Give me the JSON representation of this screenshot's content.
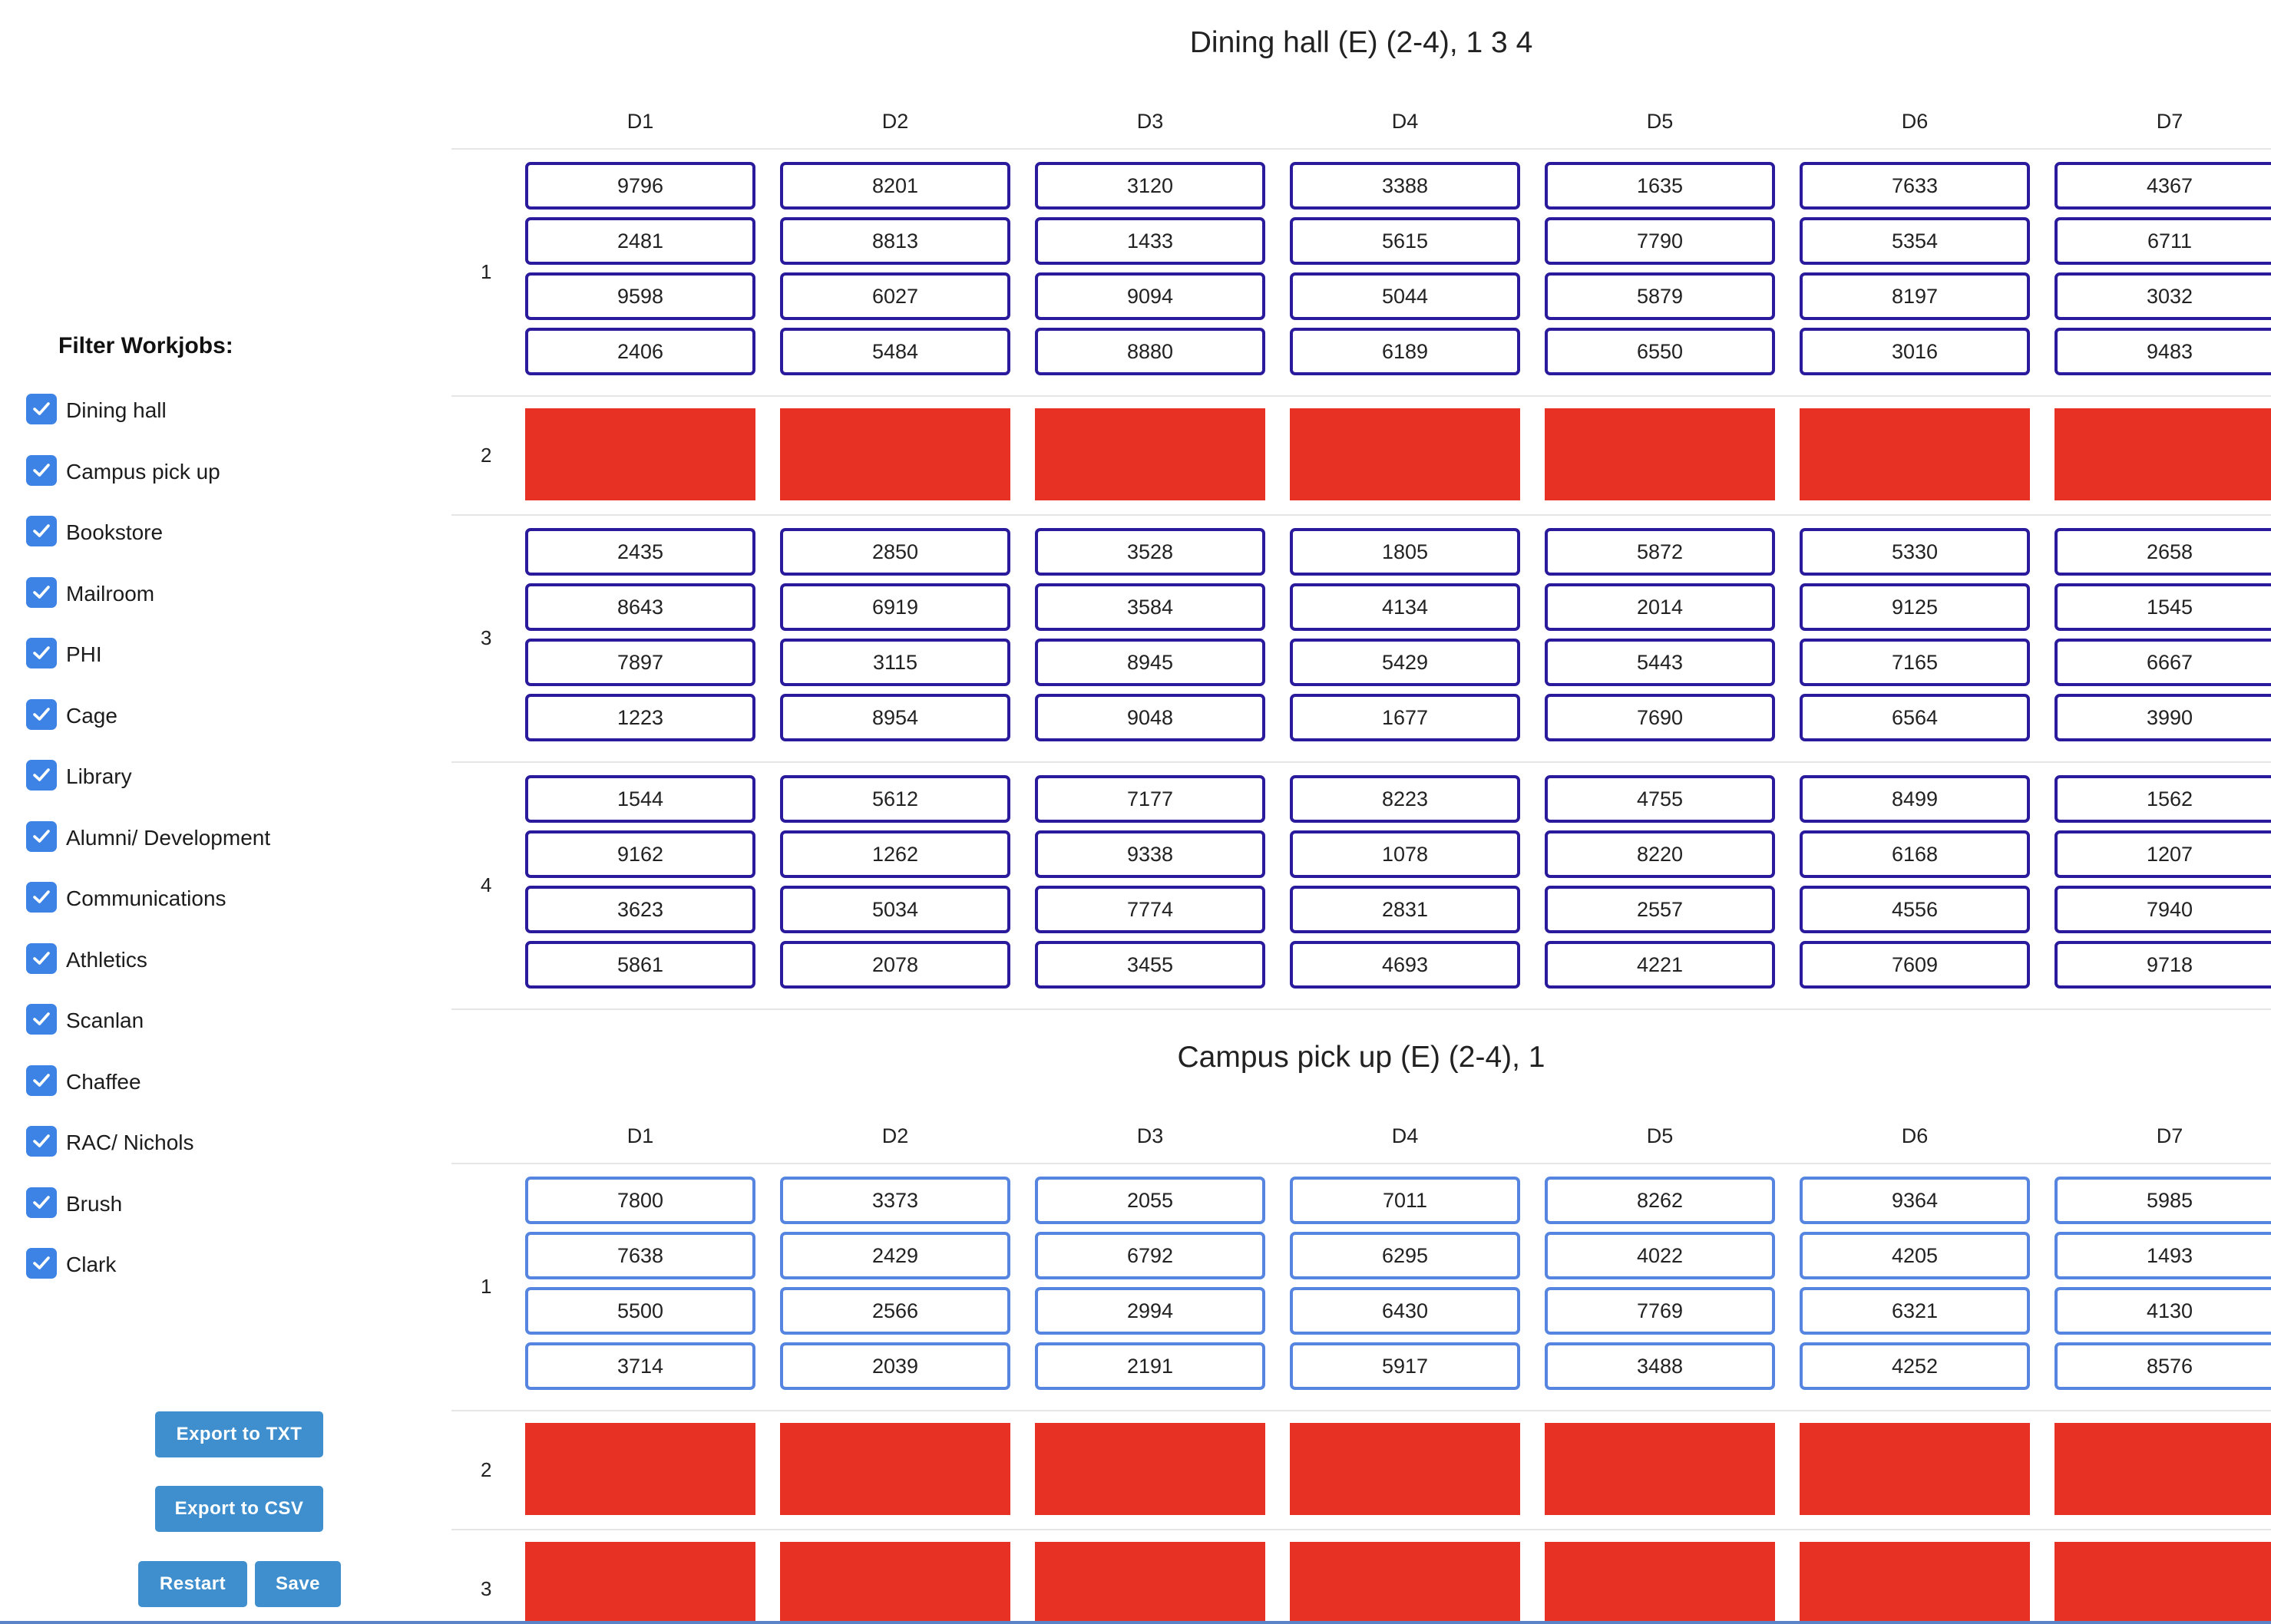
{
  "sidebar": {
    "filter_title": "Filter Workjobs:",
    "checkbox_color": "#3d83e6",
    "filters": [
      {
        "label": "Dining hall",
        "checked": true
      },
      {
        "label": "Campus pick up",
        "checked": true
      },
      {
        "label": "Bookstore",
        "checked": true
      },
      {
        "label": "Mailroom",
        "checked": true
      },
      {
        "label": "PHI",
        "checked": true
      },
      {
        "label": "Cage",
        "checked": true
      },
      {
        "label": "Library",
        "checked": true
      },
      {
        "label": "Alumni/ Development",
        "checked": true
      },
      {
        "label": "Communications",
        "checked": true
      },
      {
        "label": "Athletics",
        "checked": true
      },
      {
        "label": "Scanlan",
        "checked": true
      },
      {
        "label": "Chaffee",
        "checked": true
      },
      {
        "label": "RAC/ Nichols",
        "checked": true
      },
      {
        "label": "Brush",
        "checked": true
      },
      {
        "label": "Clark",
        "checked": true
      }
    ],
    "buttons": {
      "export_txt": "Export to TXT",
      "export_csv": "Export to CSV",
      "restart": "Restart",
      "save": "Save"
    }
  },
  "colors": {
    "blocked": "#e73125",
    "cell_border_dark": "#2a1a9c",
    "cell_border_light": "#5585e1",
    "button": "#3f8fce"
  },
  "sections": [
    {
      "title": "Dining hall (E) (2-4), 1 3 4",
      "border_style": "dark",
      "days": [
        "D1",
        "D2",
        "D3",
        "D4",
        "D5",
        "D6",
        "D7"
      ],
      "rows": [
        {
          "label": "1",
          "blocked": false,
          "cells": [
            [
              "9796",
              "2481",
              "9598",
              "2406"
            ],
            [
              "8201",
              "8813",
              "6027",
              "5484"
            ],
            [
              "3120",
              "1433",
              "9094",
              "8880"
            ],
            [
              "3388",
              "5615",
              "5044",
              "6189"
            ],
            [
              "1635",
              "7790",
              "5879",
              "6550"
            ],
            [
              "7633",
              "5354",
              "8197",
              "3016"
            ],
            [
              "4367",
              "6711",
              "3032",
              "9483"
            ]
          ]
        },
        {
          "label": "2",
          "blocked": true,
          "cells": []
        },
        {
          "label": "3",
          "blocked": false,
          "cells": [
            [
              "2435",
              "8643",
              "7897",
              "1223"
            ],
            [
              "2850",
              "6919",
              "3115",
              "8954"
            ],
            [
              "3528",
              "3584",
              "8945",
              "9048"
            ],
            [
              "1805",
              "4134",
              "5429",
              "1677"
            ],
            [
              "5872",
              "2014",
              "5443",
              "7690"
            ],
            [
              "5330",
              "9125",
              "7165",
              "6564"
            ],
            [
              "2658",
              "1545",
              "6667",
              "3990"
            ]
          ]
        },
        {
          "label": "4",
          "blocked": false,
          "cells": [
            [
              "1544",
              "9162",
              "3623",
              "5861"
            ],
            [
              "5612",
              "1262",
              "5034",
              "2078"
            ],
            [
              "7177",
              "9338",
              "7774",
              "3455"
            ],
            [
              "8223",
              "1078",
              "2831",
              "4693"
            ],
            [
              "4755",
              "8220",
              "2557",
              "4221"
            ],
            [
              "8499",
              "6168",
              "4556",
              "7609"
            ],
            [
              "1562",
              "1207",
              "7940",
              "9718"
            ]
          ]
        }
      ]
    },
    {
      "title": "Campus pick up (E) (2-4), 1",
      "border_style": "light",
      "days": [
        "D1",
        "D2",
        "D3",
        "D4",
        "D5",
        "D6",
        "D7"
      ],
      "rows": [
        {
          "label": "1",
          "blocked": false,
          "cells": [
            [
              "7800",
              "7638",
              "5500",
              "3714"
            ],
            [
              "3373",
              "2429",
              "2566",
              "2039"
            ],
            [
              "2055",
              "6792",
              "2994",
              "2191"
            ],
            [
              "7011",
              "6295",
              "6430",
              "5917"
            ],
            [
              "8262",
              "4022",
              "7769",
              "3488"
            ],
            [
              "9364",
              "4205",
              "6321",
              "4252"
            ],
            [
              "5985",
              "1493",
              "4130",
              "8576"
            ]
          ]
        },
        {
          "label": "2",
          "blocked": true,
          "cells": []
        },
        {
          "label": "3",
          "blocked": true,
          "cells": []
        }
      ]
    }
  ]
}
